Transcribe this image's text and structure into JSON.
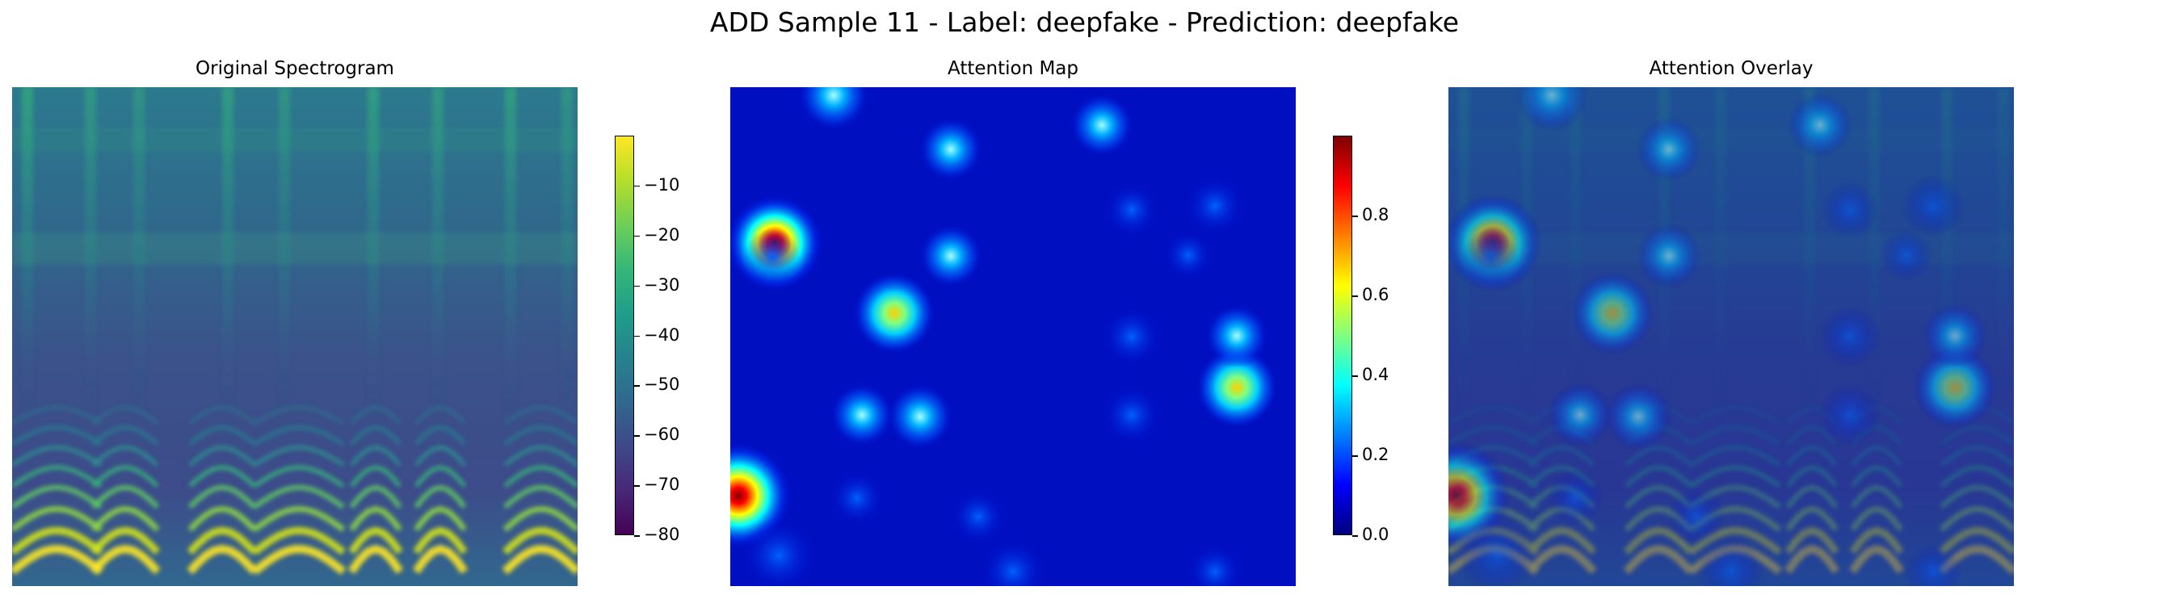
{
  "figure": {
    "suptitle": "ADD Sample 11 - Label: deepfake - Prediction: deepfake"
  },
  "chart_data": [
    {
      "type": "heatmap",
      "title": "Original Spectrogram",
      "colormap": "viridis",
      "axes_visible": false,
      "colorbar": {
        "vmin": -80,
        "vmax": 0,
        "ticks": [
          -10,
          -20,
          -30,
          -40,
          -50,
          -60,
          -70,
          -80
        ],
        "tick_labels": [
          "−10",
          "−20",
          "−30",
          "−40",
          "−50",
          "−60",
          "−70",
          "−80"
        ]
      }
    },
    {
      "type": "heatmap",
      "title": "Attention Map",
      "colormap": "jet",
      "axes_visible": false,
      "colorbar": {
        "vmin": 0.0,
        "vmax": 1.0,
        "ticks": [
          0.8,
          0.6,
          0.4,
          0.2,
          0.0
        ],
        "tick_labels": [
          "0.8",
          "0.6",
          "0.4",
          "0.2",
          "0.0"
        ]
      }
    },
    {
      "type": "heatmap",
      "title": "Attention Overlay",
      "colormap": "viridis + jet overlay",
      "axes_visible": false
    }
  ]
}
